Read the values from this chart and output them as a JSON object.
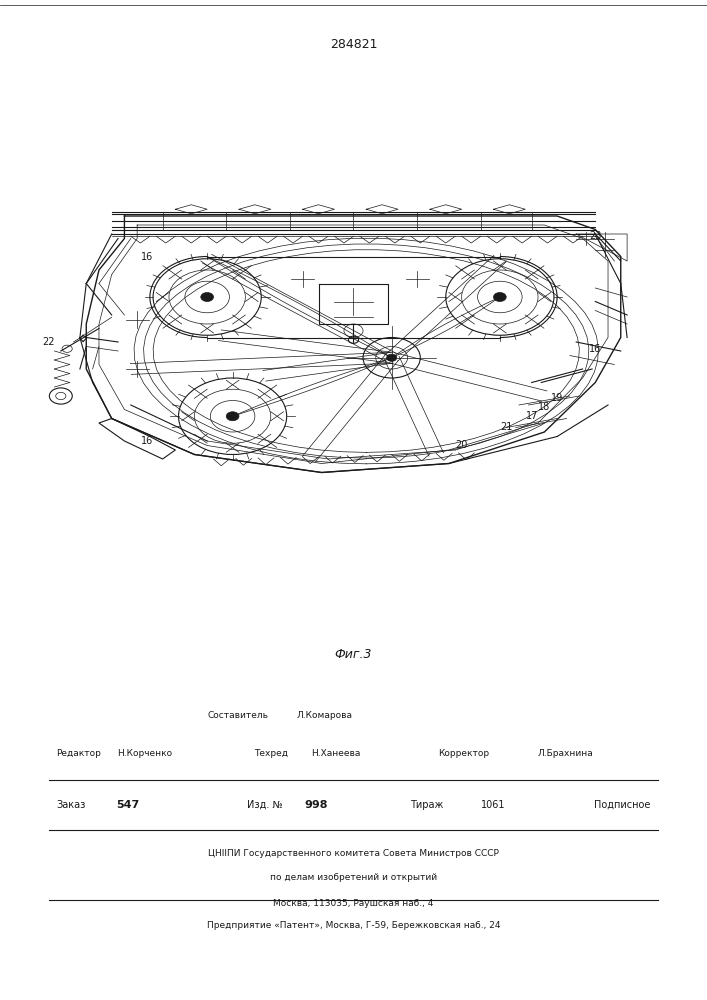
{
  "patent_number": "284821",
  "fig_label": "Фиг.3",
  "bg_color": "#ffffff",
  "line_color": "#1a1a1a",
  "page_width": 7.07,
  "page_height": 10.0,
  "footer": {
    "sestavitel_label": "Составитель",
    "sestavitel_name": "Л.Комарова",
    "redaktor_label": "Редактор",
    "redaktor_name": "Н.Корченко",
    "tehred_label": "Техред",
    "tehred_name": "Н.Ханеева",
    "korrektor_label": "Корректор",
    "korrektor_name": "Л.Брахнина",
    "zakaz_label": "Заказ",
    "zakaz_val": "547",
    "izd_label": "Изд. №",
    "izd_val": "998",
    "tirazh_label": "Тираж",
    "tirazh_val": "1061",
    "podpisnoe": "Подписное",
    "tsnipi_line1": "ЦНIIПИ Государственного комитета Совета Министров СССР",
    "tsnipi_line2": "по делам изобретений и открытий",
    "tsnipi_line3": "Москва, 113035, Раушская наб., 4",
    "predpriyatie": "Предприятие «Патент», Москва, Г-59, Бережковская наб., 24"
  }
}
